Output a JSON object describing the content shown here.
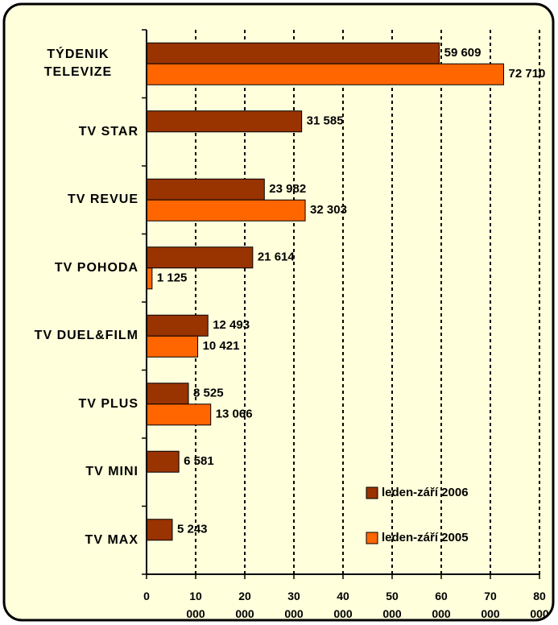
{
  "chart_data": {
    "type": "bar",
    "orientation": "horizontal",
    "categories": [
      "TÝDENIK TELEVIZE",
      "TV STAR",
      "TV REVUE",
      "TV POHODA",
      "TV DUEL&FILM",
      "TV PLUS",
      "TV MINI",
      "TV MAX"
    ],
    "series": [
      {
        "name": "leden-září 2006",
        "color": "#993300",
        "values": [
          59609,
          31585,
          23982,
          21614,
          12493,
          8525,
          6581,
          5243
        ],
        "value_labels": [
          "59 609",
          "31 585",
          "23 982",
          "21 614",
          "12 493",
          "8 525",
          "6 581",
          "5 243"
        ]
      },
      {
        "name": "leden-září 2005",
        "color": "#ff6600",
        "values": [
          72710,
          null,
          32303,
          1125,
          10421,
          13066,
          null,
          null
        ],
        "value_labels": [
          "72 710",
          null,
          "32 303",
          "1 125",
          "10 421",
          "13 066",
          null,
          null
        ]
      }
    ],
    "xlim": [
      0,
      80000
    ],
    "xticks": [
      0,
      {
        "value": 10000,
        "label": "10 000"
      },
      {
        "value": 20000,
        "label": "20 000"
      },
      {
        "value": 30000,
        "label": "30 000"
      },
      {
        "value": 40000,
        "label": "40 000"
      },
      {
        "value": 50000,
        "label": "50 000"
      },
      {
        "value": 60000,
        "label": "60 000"
      },
      {
        "value": 70000,
        "label": "70 000"
      },
      {
        "value": 80000,
        "label": "80 000"
      }
    ],
    "grid": true,
    "legend": "lower right"
  }
}
